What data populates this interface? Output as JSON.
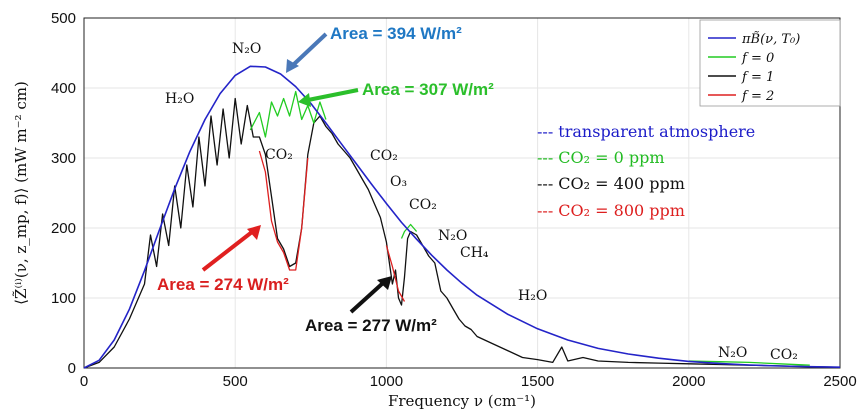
{
  "chart_data": {
    "type": "line",
    "xlabel": "Frequency ν (cm⁻¹)",
    "ylabel": "⟨Z̃⁽ⁱ⁾(ν, z_mp, f)⟩ (mW m⁻² cm)",
    "xlim": [
      0,
      2500
    ],
    "ylim": [
      0,
      500
    ],
    "xticks": [
      0,
      500,
      1000,
      1500,
      2000,
      2500
    ],
    "yticks": [
      0,
      100,
      200,
      300,
      400,
      500
    ],
    "grid": true,
    "legend_position": "top-right",
    "series": [
      {
        "name": "πB̃(ν, T₀)",
        "color": "#2424c8",
        "x": [
          0,
          50,
          100,
          150,
          200,
          250,
          300,
          350,
          400,
          450,
          500,
          550,
          600,
          650,
          700,
          750,
          800,
          850,
          900,
          950,
          1000,
          1050,
          1100,
          1150,
          1200,
          1250,
          1300,
          1400,
          1500,
          1600,
          1700,
          1800,
          1900,
          2000,
          2100,
          2200,
          2300,
          2400,
          2500
        ],
        "values": [
          0,
          11,
          40,
          84,
          139,
          198,
          256,
          309,
          355,
          392,
          418,
          431,
          430,
          420,
          402,
          378,
          350,
          321,
          292,
          263,
          235,
          208,
          184,
          161,
          140,
          121,
          104,
          77,
          56,
          40,
          28,
          20,
          14,
          9.5,
          6.5,
          4.3,
          2.8,
          1.9,
          1.2
        ]
      },
      {
        "name": "f = 0",
        "color": "#22cc22",
        "x": [
          550,
          580,
          600,
          620,
          640,
          660,
          680,
          700,
          720,
          740,
          760,
          780,
          800,
          1050,
          1060,
          1070,
          1080,
          1090,
          1100,
          2000,
          2100,
          2200,
          2300,
          2400
        ],
        "values": [
          340,
          365,
          330,
          380,
          360,
          385,
          360,
          395,
          355,
          375,
          350,
          380,
          355,
          185,
          195,
          200,
          205,
          200,
          195,
          10,
          9,
          8,
          6,
          4
        ]
      },
      {
        "name": "f = 1",
        "color": "#111111",
        "x": [
          0,
          50,
          100,
          150,
          200,
          220,
          240,
          260,
          280,
          300,
          320,
          340,
          360,
          380,
          400,
          420,
          440,
          460,
          480,
          500,
          520,
          540,
          560,
          580,
          600,
          620,
          640,
          660,
          680,
          700,
          720,
          740,
          760,
          780,
          800,
          820,
          840,
          860,
          880,
          900,
          920,
          940,
          960,
          980,
          1000,
          1010,
          1020,
          1030,
          1040,
          1050,
          1060,
          1070,
          1080,
          1100,
          1120,
          1140,
          1160,
          1180,
          1200,
          1220,
          1240,
          1260,
          1280,
          1300,
          1350,
          1400,
          1450,
          1500,
          1550,
          1580,
          1600,
          1650,
          1700,
          1800,
          1900,
          2000,
          2100,
          2200,
          2300,
          2400,
          2500
        ],
        "values": [
          0,
          8,
          30,
          70,
          120,
          190,
          145,
          220,
          175,
          260,
          200,
          290,
          230,
          330,
          260,
          360,
          290,
          370,
          300,
          385,
          320,
          375,
          330,
          330,
          305,
          245,
          185,
          170,
          145,
          150,
          200,
          305,
          350,
          360,
          345,
          335,
          320,
          310,
          300,
          285,
          270,
          255,
          235,
          215,
          180,
          150,
          120,
          140,
          100,
          90,
          130,
          185,
          195,
          190,
          175,
          160,
          150,
          110,
          100,
          85,
          70,
          60,
          55,
          45,
          35,
          25,
          15,
          12,
          8,
          30,
          10,
          15,
          10,
          8,
          7,
          6,
          5,
          4,
          3,
          2,
          1
        ]
      },
      {
        "name": "f = 2",
        "color": "#dd2020",
        "x": [
          580,
          600,
          620,
          640,
          660,
          680,
          700,
          720,
          740,
          1000,
          1020,
          1040,
          1060
        ],
        "values": [
          310,
          280,
          210,
          180,
          165,
          140,
          140,
          200,
          300,
          175,
          145,
          110,
          95
        ]
      }
    ],
    "annotations": {
      "area_transparent": "Area = 394 W/m²",
      "area_f0": "Area = 307 W/m²",
      "area_f2": "Area = 274 W/m²",
      "area_f1": "Area = 277 W/m²",
      "molecules": [
        "N₂O",
        "H₂O",
        "CO₂",
        "CO₂",
        "O₃",
        "CO₂",
        "N₂O",
        "CH₄",
        "H₂O",
        "N₂O",
        "CO₂"
      ]
    },
    "scenario_legend": [
      {
        "label": "--- transparent atmosphere",
        "color": "#1c1cc8"
      },
      {
        "label": "--- CO₂ = 0 ppm",
        "color": "#22bb22"
      },
      {
        "label": "--- CO₂ = 400 ppm",
        "color": "#111111"
      },
      {
        "label": "--- CO₂ = 800 ppm",
        "color": "#dd1f1f"
      }
    ]
  }
}
